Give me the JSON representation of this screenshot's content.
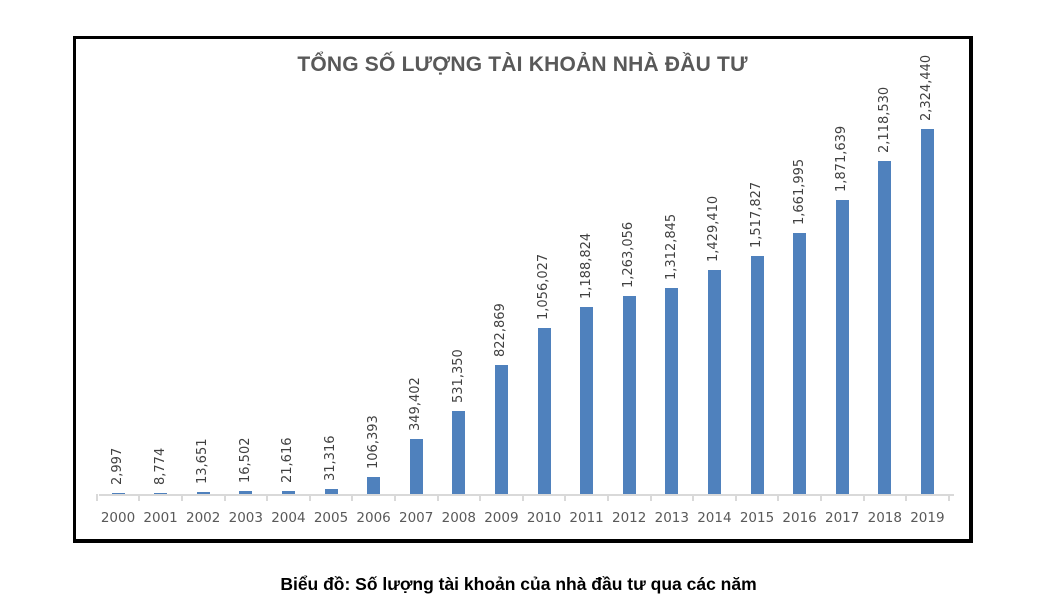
{
  "chart": {
    "title": "TỔNG SỐ LƯỢNG TÀI KHOẢN NHÀ ĐẦU TƯ",
    "bar_color": "#4f81bd"
  },
  "caption": "Biểu đồ: Số lượng tài khoản của nhà đầu tư qua các năm",
  "chart_data": {
    "type": "bar",
    "title": "TỔNG SỐ LƯỢNG TÀI KHOẢN NHÀ ĐẦU TƯ",
    "xlabel": "",
    "ylabel": "",
    "categories": [
      "2000",
      "2001",
      "2002",
      "2003",
      "2004",
      "2005",
      "2006",
      "2007",
      "2008",
      "2009",
      "2010",
      "2011",
      "2012",
      "2013",
      "2014",
      "2015",
      "2016",
      "2017",
      "2018",
      "2019"
    ],
    "values": [
      2997,
      8774,
      13651,
      16502,
      21616,
      31316,
      106393,
      349402,
      531350,
      822869,
      1056027,
      1188824,
      1263056,
      1312845,
      1429410,
      1517827,
      1661995,
      1871639,
      2118530,
      2324440
    ],
    "value_labels": [
      "2,997",
      "8,774",
      "13,651",
      "16,502",
      "21,616",
      "31,316",
      "106,393",
      "349,402",
      "531,350",
      "822,869",
      "1,056,027",
      "1,188,824",
      "1,263,056",
      "1,312,845",
      "1,429,410",
      "1,517,827",
      "1,661,995",
      "1,871,639",
      "2,118,530",
      "2,324,440"
    ],
    "ylim": [
      0,
      2500000
    ],
    "grid": false,
    "legend": "none",
    "y_axis_visible": false,
    "data_labels": "rotated -90°, above bars"
  }
}
